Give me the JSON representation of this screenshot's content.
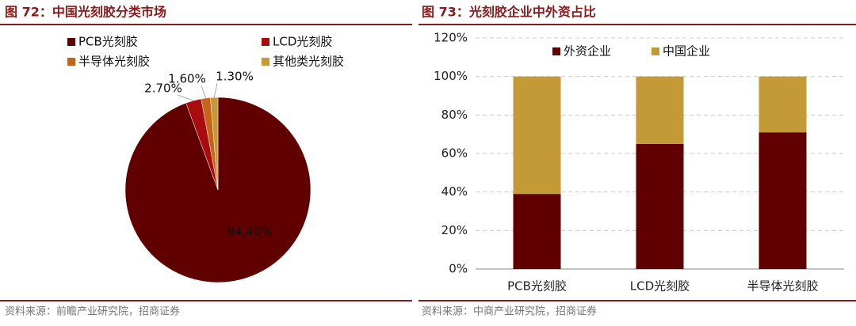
{
  "charts": [
    {
      "chart_data": {
        "type": "pie",
        "title": "图 72：中国光刻胶分类市场",
        "categories": [
          "PCB光刻胶",
          "LCD光刻胶",
          "半导体光刻胶",
          "其他类光刻胶"
        ],
        "values": [
          94.4,
          2.7,
          1.6,
          1.3
        ],
        "value_labels": [
          "94.40%",
          "2.70%",
          "1.60%",
          "1.30%"
        ],
        "colors": [
          "#600000",
          "#a80c0c",
          "#c8641a",
          "#c49a36"
        ],
        "source": "资料来源：前瞻产业研究院，招商证券"
      }
    },
    {
      "chart_data": {
        "type": "stacked-bar",
        "title": "图 73：光刻胶企业中外资占比",
        "categories": [
          "PCB光刻胶",
          "LCD光刻胶",
          "半导体光刻胶"
        ],
        "series": [
          {
            "name": "外资企业",
            "color": "#600000",
            "values": [
              39,
              65,
              71
            ]
          },
          {
            "name": "中国企业",
            "color": "#c49a36",
            "values": [
              61,
              35,
              29
            ]
          }
        ],
        "ylim": [
          0,
          120
        ],
        "yticks": [
          {
            "value": 0,
            "label": "0%"
          },
          {
            "value": 20,
            "label": "20%"
          },
          {
            "value": 40,
            "label": "40%"
          },
          {
            "value": 60,
            "label": "60%"
          },
          {
            "value": 80,
            "label": "80%"
          },
          {
            "value": 100,
            "label": "100%"
          },
          {
            "value": 120,
            "label": "120%"
          }
        ],
        "grid": true,
        "source": "资料来源：中商产业研究院，招商证券"
      }
    }
  ]
}
